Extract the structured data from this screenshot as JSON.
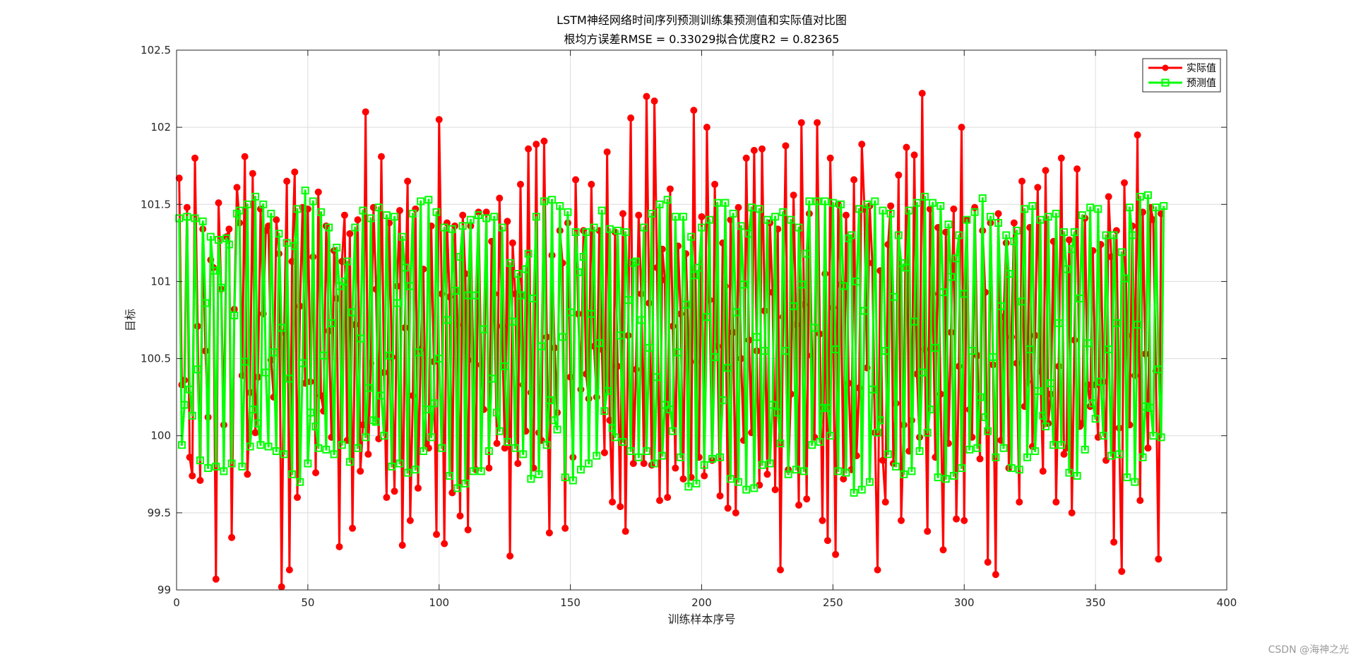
{
  "watermark": "CSDN @海神之光",
  "chart_data": {
    "type": "line",
    "title": "LSTM神经网络时间序列预测训练集预测值和实际值对比图",
    "subtitle": "根均方误差RMSE = 0.33029拟合优度R2 = 0.82365",
    "xlabel": "训练样本序号",
    "ylabel": "目标",
    "xlim": [
      0,
      400
    ],
    "ylim": [
      99,
      102.5
    ],
    "xticks": [
      0,
      50,
      100,
      150,
      200,
      250,
      300,
      350,
      400
    ],
    "yticks": [
      99,
      99.5,
      100,
      100.5,
      101,
      101.5,
      102,
      102.5
    ],
    "grid": true,
    "legend_position": "top-right",
    "colors": {
      "actual": "#ff0000",
      "predicted": "#00ff00"
    },
    "series": [
      {
        "name": "实际值",
        "marker": "circle",
        "color": "#ff0000",
        "y": [
          101.67,
          100.33,
          100.36,
          101.48,
          99.86,
          99.74,
          101.8,
          100.71,
          99.71,
          101.34,
          100.55,
          100.12,
          101.14,
          101.09,
          99.07,
          101.51,
          100.95,
          100.07,
          101.29,
          101.34,
          99.34,
          100.82,
          101.61,
          101.38,
          100.39,
          101.81,
          99.75,
          100.28,
          101.7,
          100.02,
          100.38,
          101.47,
          100.79,
          101.33,
          101.36,
          100.49,
          100.25,
          101.4,
          101.18,
          99.02,
          100.67,
          101.65,
          99.13,
          101.13,
          101.71,
          99.6,
          100.84,
          101.48,
          100.34,
          101.47,
          100.35,
          101.16,
          99.76,
          101.58,
          100.26,
          100.16,
          101.36,
          100.68,
          99.99,
          101.2,
          100.89,
          99.28,
          101.13,
          101.43,
          99.97,
          101.31,
          99.4,
          100.72,
          101.4,
          99.77,
          100.07,
          102.1,
          99.88,
          100.47,
          101.48,
          100.95,
          99.98,
          101.81,
          100.41,
          99.6,
          101.38,
          100.51,
          99.64,
          100.97,
          101.46,
          99.29,
          100.7,
          101.65,
          99.45,
          100.26,
          101.47,
          99.66,
          100.56,
          101.08,
          99.95,
          99.92,
          101.36,
          100.48,
          99.36,
          102.05,
          100.92,
          99.3,
          101.38,
          100.9,
          99.63,
          101.36,
          100.72,
          99.48,
          101.43,
          101.05,
          99.39,
          101.36,
          100.49,
          99.78,
          101.45,
          100.46,
          100.17,
          101.45,
          99.79,
          101.26,
          100.92,
          99.95,
          101.54,
          100.71,
          99.92,
          101.39,
          99.22,
          101.25,
          100.92,
          99.82,
          101.63,
          100.33,
          100.03,
          101.86,
          100.28,
          99.79,
          101.89,
          100.02,
          99.97,
          101.91,
          100.64,
          99.37,
          101.17,
          100.57,
          100.15,
          101.33,
          101.12,
          99.4,
          101.38,
          100.38,
          99.86,
          101.66,
          100.79,
          100.3,
          101.33,
          100.4,
          100.24,
          101.63,
          100.58,
          100.25,
          101.33,
          100.56,
          99.89,
          101.84,
          100.1,
          99.57,
          101.32,
          100.45,
          99.54,
          101.44,
          99.38,
          100.65,
          102.06,
          99.82,
          100.43,
          101.43,
          100.92,
          99.82,
          102.2,
          100.86,
          99.81,
          102.17,
          101.09,
          99.58,
          101.21,
          101.01,
          99.6,
          101.6,
          100.71,
          99.79,
          101.23,
          100.79,
          99.72,
          101.18,
          100.6,
          99.73,
          102.11,
          100.48,
          99.86,
          101.42,
          99.74,
          102.0,
          100.88,
          99.84,
          101.63,
          100.58,
          99.61,
          101.25,
          100.97,
          99.53,
          101.4,
          100.67,
          99.5,
          101.48,
          100.5,
          99.97,
          101.8,
          100.62,
          100.02,
          101.85,
          100.55,
          99.68,
          101.86,
          100.81,
          99.75,
          101.38,
          100.93,
          99.65,
          101.34,
          99.13,
          100.77,
          101.88,
          99.78,
          100.27,
          101.56,
          100.72,
          99.55,
          102.03,
          100.85,
          99.59,
          101.44,
          100.52,
          99.99,
          102.03,
          100.66,
          99.45,
          101.05,
          99.32,
          101.8,
          100.83,
          99.23,
          101.5,
          100.98,
          99.72,
          101.43,
          100.34,
          99.78,
          101.66,
          99.87,
          100.31,
          101.89,
          101.47,
          100.44,
          101.49,
          101.12,
          100.02,
          99.13,
          101.07,
          99.84,
          99.57,
          101.24,
          101.49,
          99.82,
          100.21,
          101.69,
          99.45,
          100.07,
          101.87,
          99.9,
          100.1,
          101.82,
          100.4,
          99.99,
          102.22,
          100.56,
          99.38,
          101.47,
          100.92,
          99.86,
          101.35,
          100.27,
          99.26,
          101.32,
          99.95,
          100.67,
          101.47,
          99.46,
          100.45,
          102.0,
          99.45,
          101.4,
          100.17,
          99.99,
          101.48,
          100.52,
          99.85,
          101.33,
          100.93,
          99.18,
          101.38,
          100.46,
          99.1,
          101.44,
          99.97,
          100.77,
          101.25,
          99.79,
          100.64,
          101.38,
          100.47,
          99.57,
          101.65,
          100.19,
          100.35,
          101.35,
          99.93,
          100.65,
          101.61,
          100.42,
          99.77,
          101.72,
          100.08,
          100.27,
          101.26,
          99.57,
          100.45,
          101.8,
          99.88,
          99.92,
          101.27,
          99.5,
          100.62,
          101.73,
          100.06,
          100.08,
          101.41,
          100.33,
          100.19,
          101.2,
          100.33,
          99.99,
          101.24,
          100.35,
          99.84,
          101.55,
          101.16,
          99.31,
          101.33,
          100.05,
          99.12,
          101.64,
          100.65,
          100.07,
          101.36,
          100.39,
          101.95,
          99.58,
          101.45,
          100.53,
          99.92,
          101.48,
          101.4,
          100.42,
          99.2,
          101.44
        ]
      },
      {
        "name": "预测值",
        "marker": "square",
        "color": "#00ff00",
        "y": [
          101.41,
          99.94,
          100.2,
          101.42,
          100.3,
          100.13,
          101.41,
          100.43,
          99.84,
          101.39,
          100.86,
          99.79,
          101.29,
          101.07,
          99.8,
          101.27,
          100.96,
          99.77,
          101.28,
          101.24,
          99.82,
          100.78,
          101.44,
          101.46,
          99.8,
          100.48,
          101.5,
          99.93,
          100.17,
          101.55,
          100.08,
          99.94,
          101.5,
          100.41,
          99.93,
          101.44,
          100.54,
          99.9,
          101.31,
          100.7,
          99.88,
          101.25,
          100.37,
          99.75,
          101.23,
          101.47,
          99.7,
          100.47,
          101.59,
          99.82,
          100.15,
          101.52,
          100.06,
          99.92,
          101.45,
          100.52,
          99.91,
          101.35,
          100.73,
          99.88,
          101.22,
          100.97,
          99.94,
          101.0,
          101.13,
          99.83,
          100.8,
          101.35,
          99.92,
          100.63,
          101.46,
          99.99,
          100.31,
          101.41,
          100.1,
          100.09,
          101.48,
          100.26,
          100.0,
          101.43,
          100.52,
          99.8,
          101.42,
          100.86,
          99.82,
          101.29,
          101.09,
          99.76,
          100.97,
          101.44,
          99.78,
          100.54,
          101.52,
          99.9,
          100.17,
          101.53,
          99.99,
          100.21,
          101.45,
          100.5,
          99.92,
          101.35,
          100.75,
          99.74,
          101.34,
          100.94,
          99.66,
          101.16,
          101.36,
          99.69,
          100.91,
          101.4,
          99.77,
          100.91,
          101.43,
          99.77,
          100.69,
          101.41,
          99.9,
          100.37,
          101.42,
          100.15,
          100.03,
          101.35,
          100.45,
          99.96,
          101.12,
          100.74,
          99.92,
          101.05,
          100.91,
          99.88,
          101.08,
          101.18,
          99.72,
          100.89,
          101.42,
          99.75,
          100.58,
          101.52,
          99.94,
          100.23,
          101.53,
          100.1,
          100.04,
          101.49,
          100.64,
          99.73,
          101.45,
          100.8,
          99.71,
          101.32,
          101.06,
          99.78,
          101.16,
          101.32,
          99.82,
          100.79,
          101.35,
          99.87,
          100.6,
          101.46,
          100.16,
          100.29,
          101.34,
          100.05,
          99.99,
          101.33,
          100.65,
          99.96,
          101.32,
          100.88,
          99.9,
          101.12,
          101.13,
          99.86,
          100.75,
          101.35,
          99.9,
          100.57,
          101.44,
          99.82,
          100.38,
          101.5,
          99.87,
          100.2,
          101.53,
          100.17,
          100.03,
          101.42,
          100.54,
          99.86,
          101.42,
          100.85,
          99.67,
          101.29,
          101.04,
          99.69,
          101.09,
          101.35,
          99.81,
          100.77,
          101.4,
          99.85,
          100.51,
          101.51,
          99.86,
          100.23,
          101.51,
          100.44,
          99.72,
          101.44,
          100.8,
          99.7,
          101.36,
          100.98,
          99.65,
          101.31,
          101.48,
          99.66,
          100.64,
          101.47,
          99.81,
          100.55,
          101.4,
          99.82,
          100.2,
          101.42,
          100.15,
          99.95,
          101.45,
          100.55,
          99.75,
          101.4,
          100.84,
          99.78,
          101.35,
          100.98,
          99.77,
          101.18,
          101.52,
          99.94,
          100.7,
          101.52,
          99.96,
          100.18,
          101.52,
          100.18,
          100.0,
          101.51,
          100.56,
          99.77,
          101.5,
          100.97,
          99.76,
          101.28,
          101.3,
          99.63,
          101.0,
          101.47,
          99.65,
          100.81,
          101.5,
          99.7,
          100.3,
          101.52,
          100.02,
          100.1,
          101.46,
          100.55,
          99.88,
          101.44,
          100.9,
          99.8,
          101.3,
          101.12,
          99.75,
          101.09,
          101.46,
          99.77,
          100.74,
          101.51,
          99.9,
          100.41,
          101.55,
          100.02,
          100.17,
          101.51,
          100.57,
          99.73,
          101.49,
          100.93,
          99.72,
          101.37,
          101.03,
          99.74,
          101.15,
          101.3,
          99.79,
          100.92,
          101.4,
          99.91,
          100.55,
          101.45,
          99.92,
          100.25,
          101.54,
          100.12,
          100.03,
          101.42,
          100.51,
          99.86,
          101.38,
          100.84,
          99.92,
          101.3,
          101.05,
          99.79,
          101.26,
          101.33,
          99.78,
          100.87,
          101.47,
          99.86,
          100.56,
          101.49,
          99.9,
          100.29,
          101.4,
          100.13,
          100.06,
          101.42,
          100.34,
          99.94,
          101.44,
          100.73,
          99.94,
          101.32,
          101.08,
          99.76,
          101.21,
          101.32,
          99.74,
          100.89,
          101.43,
          99.91,
          100.6,
          101.48,
          100.21,
          100.11,
          101.47,
          100.35,
          100.0,
          101.3,
          100.56,
          99.87,
          101.3,
          100.73,
          99.88,
          101.19,
          101.02,
          99.73,
          101.48,
          101.3,
          99.7,
          100.72,
          101.55,
          99.86,
          100.19,
          101.56,
          100.18,
          100.0,
          101.48,
          100.43,
          99.99,
          101.49
        ]
      }
    ]
  }
}
